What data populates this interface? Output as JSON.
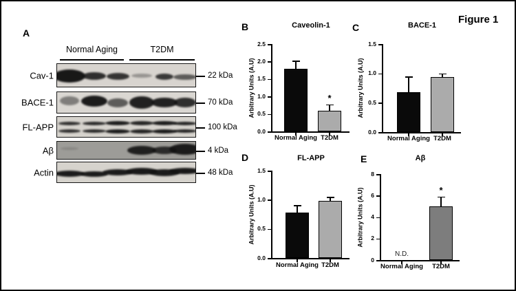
{
  "figure_label": "Figure 1",
  "panel_a": {
    "letter": "A",
    "group_headers": [
      "Normal Aging",
      "T2DM"
    ],
    "blots": [
      {
        "label": "Cav-1",
        "kda": "22 kDa",
        "bg": "#d8d4cf",
        "bands": [
          [
            0.97,
            46,
            19,
            1
          ],
          [
            0.85,
            34,
            11,
            1
          ],
          [
            0.82,
            33,
            10,
            1
          ],
          [
            0.32,
            30,
            6,
            0
          ],
          [
            0.8,
            26,
            9,
            2
          ],
          [
            0.62,
            34,
            8,
            2
          ]
        ]
      },
      {
        "label": "BACE-1",
        "kda": "70 kDa",
        "bg": "#dad7d2",
        "bands": [
          [
            0.45,
            28,
            13,
            -3
          ],
          [
            0.95,
            38,
            16,
            -2
          ],
          [
            0.62,
            30,
            13,
            0
          ],
          [
            0.92,
            36,
            18,
            0
          ],
          [
            0.92,
            38,
            14,
            0
          ],
          [
            0.85,
            32,
            14,
            0
          ]
        ]
      },
      {
        "label": "FL-APP",
        "kda": "100 kDa",
        "bg": "#d6d3cd",
        "pair": true,
        "bands": [
          [
            0.85,
            32,
            5,
            0
          ],
          [
            0.88,
            34,
            5,
            0
          ],
          [
            0.95,
            36,
            6,
            0
          ],
          [
            0.9,
            34,
            6,
            0
          ],
          [
            0.95,
            36,
            6,
            0
          ],
          [
            0.9,
            34,
            5,
            0
          ]
        ]
      },
      {
        "label": "Aβ",
        "kda": "4 kDa",
        "bg": "#9d9c98",
        "bands": [
          [
            0.15,
            26,
            4,
            -3
          ],
          [
            0,
            0,
            0,
            0
          ],
          [
            0,
            0,
            0,
            0
          ],
          [
            0.9,
            42,
            13,
            0
          ],
          [
            0.82,
            36,
            11,
            0
          ],
          [
            0.93,
            46,
            16,
            -2
          ]
        ]
      },
      {
        "label": "Actin",
        "kda": "48 kDa",
        "bg": "#d6d3cd",
        "bands": [
          [
            0.95,
            44,
            9,
            2
          ],
          [
            0.95,
            40,
            8,
            2
          ],
          [
            0.95,
            44,
            9,
            0
          ],
          [
            0.96,
            46,
            10,
            -2
          ],
          [
            0.95,
            44,
            10,
            0
          ],
          [
            0.96,
            46,
            9,
            -2
          ]
        ]
      }
    ]
  },
  "chart_data": [
    {
      "panel": "B",
      "type": "bar",
      "title": "Caveolin-1",
      "ylabel": "Arbitrary Units (A.U)",
      "categories": [
        "Normal Aging",
        "T2DM"
      ],
      "values": [
        1.8,
        0.6
      ],
      "errors": [
        0.22,
        0.17
      ],
      "significance": [
        "",
        "*"
      ],
      "bar_colors": [
        "#0a0a0a",
        "#ababab"
      ],
      "ylim": [
        0,
        2.5
      ],
      "yticks": [
        "0.0",
        "0.5",
        "1.0",
        "1.5",
        "2.0",
        "2.5"
      ]
    },
    {
      "panel": "C",
      "type": "bar",
      "title": "BACE-1",
      "ylabel": "Arbitrary Units (A.U)",
      "categories": [
        "Normal Aging",
        "T2DM"
      ],
      "values": [
        0.68,
        0.94
      ],
      "errors": [
        0.27,
        0.06
      ],
      "significance": [
        "",
        ""
      ],
      "bar_colors": [
        "#0a0a0a",
        "#ababab"
      ],
      "ylim": [
        0,
        1.5
      ],
      "yticks": [
        "0.0",
        "0.5",
        "1.0",
        "1.5"
      ]
    },
    {
      "panel": "D",
      "type": "bar",
      "title": "FL-APP",
      "ylabel": "Arbitrary Units (A.U)",
      "categories": [
        "Normal Aging",
        "T2DM"
      ],
      "values": [
        0.78,
        0.98
      ],
      "errors": [
        0.13,
        0.07
      ],
      "significance": [
        "",
        ""
      ],
      "bar_colors": [
        "#0a0a0a",
        "#ababab"
      ],
      "ylim": [
        0,
        1.5
      ],
      "yticks": [
        "0.0",
        "0.5",
        "1.0",
        "1.5"
      ]
    },
    {
      "panel": "E",
      "type": "bar",
      "title": "Aβ",
      "ylabel": "Arbitrary Units (A.U)",
      "categories": [
        "Normal Aging",
        "T2DM"
      ],
      "values": [
        null,
        5.0
      ],
      "errors": [
        null,
        0.9
      ],
      "significance": [
        "",
        "*"
      ],
      "nd_text": "N.D.",
      "bar_colors": [
        "#0a0a0a",
        "#7d7d7d"
      ],
      "ylim": [
        0,
        8
      ],
      "yticks": [
        "0",
        "2",
        "4",
        "6",
        "8"
      ]
    }
  ]
}
